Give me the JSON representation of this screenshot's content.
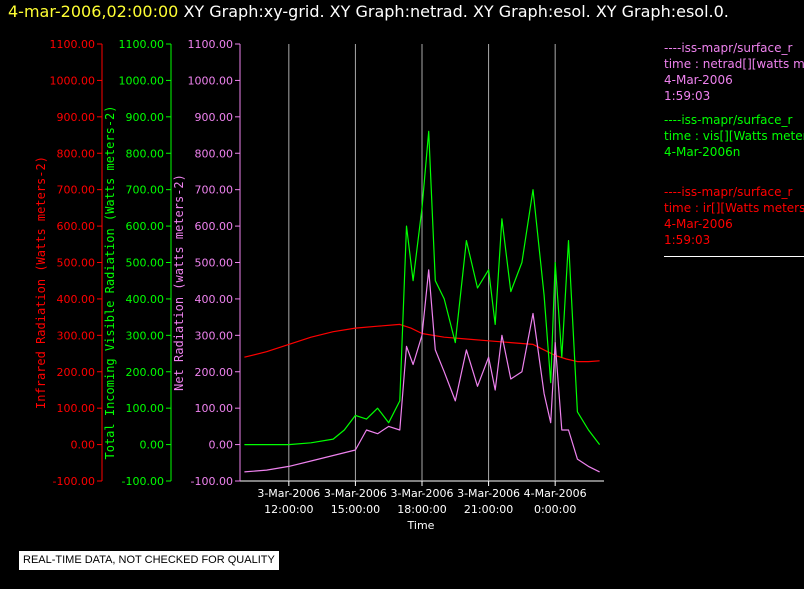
{
  "header": {
    "timestamp": "4-mar-2006,02:00:00",
    "graphs": [
      "XY Graph:xy-grid.",
      "XY Graph:netrad.",
      "XY Graph:esol.",
      "XY Graph:esol.0."
    ]
  },
  "legend": [
    {
      "lines": [
        "----iss-mapr/surface_r",
        "time : netrad[][watts me",
        "4-Mar-2006",
        "1:59:03"
      ],
      "color": "#ee82ee"
    },
    {
      "lines": [
        "----iss-mapr/surface_r",
        "time : vis[][Watts meter",
        "4-Mar-2006n"
      ],
      "color": "#00ff00"
    },
    {
      "lines": [
        "----iss-mapr/surface_r",
        "time : ir[][Watts meters",
        "4-Mar-2006",
        "1:59:03"
      ],
      "color": "#ff0000"
    }
  ],
  "qc_note": "REAL-TIME DATA, NOT CHECKED FOR QUALITY",
  "chart_data": {
    "type": "line",
    "xlabel": "Time",
    "x_ticks": [
      {
        "line1": "3-Mar-2006",
        "line2": "12:00:00",
        "hour": 12
      },
      {
        "line1": "3-Mar-2006",
        "line2": "15:00:00",
        "hour": 15
      },
      {
        "line1": "3-Mar-2006",
        "line2": "18:00:00",
        "hour": 18
      },
      {
        "line1": "3-Mar-2006",
        "line2": "21:00:00",
        "hour": 21
      },
      {
        "line1": "4-Mar-2006",
        "line2": "0:00:00",
        "hour": 24
      }
    ],
    "xlim_hours": [
      9.8,
      26.2
    ],
    "grid_vertical": true,
    "axes": [
      {
        "label": "Infrared Radiation (Watts meters-2)",
        "color": "#ff0000",
        "ticks": [
          "1100.00",
          "1000.00",
          "900.00",
          "800.00",
          "700.00",
          "600.00",
          "500.00",
          "400.00",
          "300.00",
          "200.00",
          "100.00",
          "0.00",
          "-100.00"
        ]
      },
      {
        "label": "Total Incoming Visible Radiation (Watts meters-2)",
        "color": "#00ff00",
        "ticks": [
          "1100.00",
          "1000.00",
          "900.00",
          "800.00",
          "700.00",
          "600.00",
          "500.00",
          "400.00",
          "300.00",
          "200.00",
          "100.00",
          "0.00",
          "-100.00"
        ]
      },
      {
        "label": "Net Radiation (watts meters-2)",
        "color": "#ee82ee",
        "ticks": [
          "1100.00",
          "1000.00",
          "900.00",
          "800.00",
          "700.00",
          "600.00",
          "500.00",
          "400.00",
          "300.00",
          "200.00",
          "100.00",
          "0.00",
          "-100.00"
        ]
      }
    ],
    "ylim": [
      -100,
      1100
    ],
    "series": [
      {
        "name": "ir",
        "color": "#ff0000",
        "x": [
          10,
          11,
          12,
          13,
          14,
          15,
          16,
          17,
          17.5,
          18,
          19,
          20,
          21,
          22,
          23,
          23.5,
          24,
          24.5,
          25,
          25.5,
          26
        ],
        "y": [
          240,
          255,
          275,
          295,
          310,
          320,
          325,
          330,
          320,
          305,
          295,
          290,
          285,
          280,
          275,
          260,
          245,
          235,
          228,
          228,
          230
        ]
      },
      {
        "name": "vis",
        "color": "#00ff00",
        "x": [
          10,
          11,
          12,
          13,
          14,
          14.5,
          15,
          15.5,
          16,
          16.5,
          17,
          17.3,
          17.6,
          18,
          18.3,
          18.6,
          19,
          19.5,
          20,
          20.5,
          21,
          21.3,
          21.6,
          22,
          22.5,
          23,
          23.5,
          23.8,
          24,
          24.3,
          24.6,
          25,
          25.5,
          26
        ],
        "y": [
          0,
          0,
          0,
          5,
          15,
          40,
          80,
          70,
          100,
          60,
          120,
          600,
          450,
          650,
          860,
          450,
          400,
          280,
          560,
          430,
          480,
          330,
          620,
          420,
          500,
          700,
          410,
          170,
          500,
          240,
          560,
          90,
          40,
          0
        ]
      },
      {
        "name": "netrad",
        "color": "#ee82ee",
        "x": [
          10,
          11,
          12,
          13,
          14,
          15,
          15.5,
          16,
          16.5,
          17,
          17.3,
          17.6,
          18,
          18.3,
          18.6,
          19,
          19.5,
          20,
          20.5,
          21,
          21.3,
          21.6,
          22,
          22.5,
          23,
          23.5,
          23.8,
          24,
          24.3,
          24.6,
          25,
          25.5,
          26
        ],
        "y": [
          -75,
          -70,
          -60,
          -45,
          -30,
          -15,
          40,
          30,
          50,
          40,
          270,
          220,
          300,
          480,
          260,
          200,
          120,
          260,
          160,
          240,
          150,
          300,
          180,
          200,
          360,
          140,
          60,
          280,
          40,
          40,
          -40,
          -60,
          -75
        ]
      }
    ]
  }
}
